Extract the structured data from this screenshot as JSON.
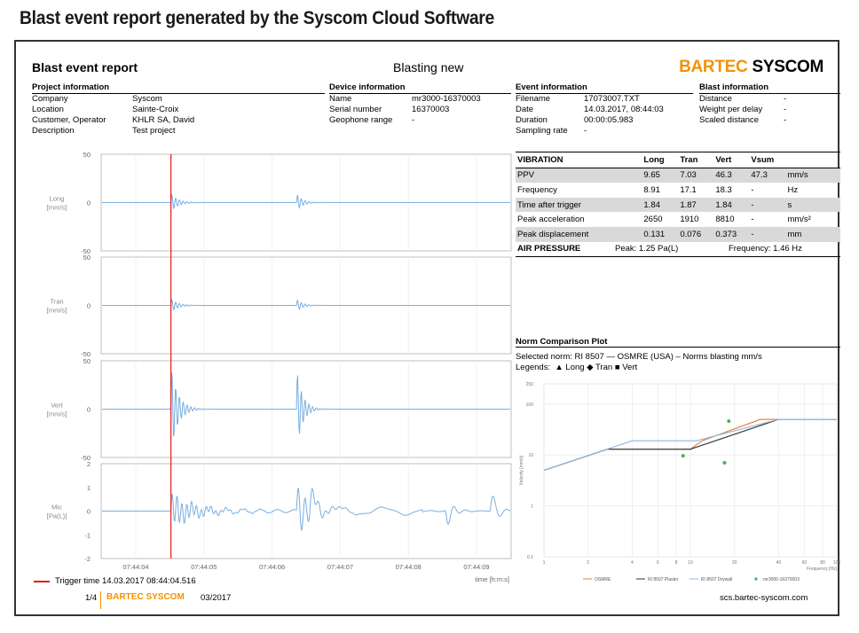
{
  "caption": "Blast event report generated by the Syscom Cloud Software",
  "report": {
    "title": "Blast event report",
    "subtitle": "Blasting new",
    "brand_a": "BARTEC",
    "brand_b": "SYSCOM",
    "colors": {
      "brand": "#f39200",
      "trace": "#7aaedf",
      "trigger": "#e31b1b",
      "shade": "#d9d9d9"
    }
  },
  "project": {
    "heading": "Project information",
    "rows": [
      {
        "k": "Company",
        "v": "Syscom"
      },
      {
        "k": "Location",
        "v": "Sainte-Croix"
      },
      {
        "k": "Customer, Operator",
        "v": "KHLR SA, David"
      },
      {
        "k": "Description",
        "v": "Test project"
      }
    ]
  },
  "device": {
    "heading": "Device information",
    "rows": [
      {
        "k": "Name",
        "v": "mr3000-16370003"
      },
      {
        "k": "Serial number",
        "v": "16370003"
      },
      {
        "k": "Geophone range",
        "v": "-"
      }
    ]
  },
  "event": {
    "heading": "Event information",
    "rows": [
      {
        "k": "Filename",
        "v": "17073007.TXT"
      },
      {
        "k": "Date",
        "v": "14.03.2017, 08:44:03"
      },
      {
        "k": "Duration",
        "v": "00:00:05.983"
      },
      {
        "k": "Sampling rate",
        "v": "-"
      }
    ]
  },
  "blast": {
    "heading": "Blast information",
    "rows": [
      {
        "k": "Distance",
        "v": "-"
      },
      {
        "k": "Weight per delay",
        "v": "-"
      },
      {
        "k": "Scaled distance",
        "v": "-"
      }
    ]
  },
  "vibration": {
    "header": [
      "VIBRATION",
      "Long",
      "Tran",
      "Vert",
      "Vsum",
      ""
    ],
    "rows": [
      [
        "PPV",
        "9.65",
        "7.03",
        "46.3",
        "47.3",
        "mm/s"
      ],
      [
        "Frequency",
        "8.91",
        "17.1",
        "18.3",
        "-",
        "Hz"
      ],
      [
        "Time after trigger",
        "1.84",
        "1.87",
        "1.84",
        "-",
        "s"
      ],
      [
        "Peak acceleration",
        "2650",
        "1910",
        "8810",
        "-",
        "mm/s²"
      ],
      [
        "Peak displacement",
        "0.131",
        "0.076",
        "0.373",
        "-",
        "mm"
      ]
    ]
  },
  "air": {
    "label": "AIR PRESSURE",
    "peak": "Peak: 1.25 Pa(L)",
    "freq": "Frequency: 1.46 Hz"
  },
  "norm": {
    "heading": "Norm Comparison Plot",
    "selected": "Selected norm: RI 8507 — OSMRE (USA) – Norms blasting mm/s",
    "legends_label": "Legends:",
    "leg_long": "Long",
    "leg_tran": "Tran",
    "leg_vert": "Vert",
    "y_label": "Velocity [mm/s]",
    "x_label": "Frequency [Hz]",
    "y_ticks": [
      "250",
      "100",
      "10",
      "1",
      "0.1"
    ],
    "x_ticks": [
      "1",
      "2",
      "4",
      "6",
      "8",
      "10",
      "20",
      "40",
      "60",
      "80",
      "100"
    ],
    "legend": [
      "OSMRE",
      "RI 8507 Plaster",
      "RI 8507 Drywall",
      "mr3000-16370003"
    ],
    "points": [
      {
        "f": 8.91,
        "v": 9.65,
        "label": "Long"
      },
      {
        "f": 17.1,
        "v": 7.03,
        "label": "Tran"
      },
      {
        "f": 18.3,
        "v": 46.3,
        "label": "Vert"
      }
    ]
  },
  "chart_data": {
    "type": "line",
    "x_label": "time [h:m:s]",
    "x_ticks": [
      "07:44:04",
      "07:44:05",
      "07:44:06",
      "07:44:07",
      "07:44:08",
      "07:44:09"
    ],
    "trigger_time": "07:44:04.516",
    "series": [
      {
        "name": "Long",
        "unit_label": "[mm/s]",
        "ylim": [
          -50,
          50
        ],
        "y_ticks": [
          "50",
          "0",
          "-50"
        ],
        "peak": 9.65
      },
      {
        "name": "Tran",
        "unit_label": "[mm/s]",
        "ylim": [
          -50,
          50
        ],
        "y_ticks": [
          "50",
          "0",
          "-50"
        ],
        "peak": 7.03
      },
      {
        "name": "Vert",
        "unit_label": "[mm/s]",
        "ylim": [
          -50,
          50
        ],
        "y_ticks": [
          "50",
          "0",
          "-50"
        ],
        "peak": 46.3
      },
      {
        "name": "Mic",
        "unit_label": "[Pa(L)]",
        "ylim": [
          -2,
          2
        ],
        "y_ticks": [
          "2",
          "1",
          "0",
          "-1",
          "-2"
        ],
        "peak": 1.25
      }
    ]
  },
  "footer": {
    "trigger_label": "Trigger time 14.03.2017 08:44:04.516",
    "page": "1/4",
    "brand": "BARTEC SYSCOM",
    "date": "03/2017",
    "url": "scs.bartec-syscom.com"
  }
}
